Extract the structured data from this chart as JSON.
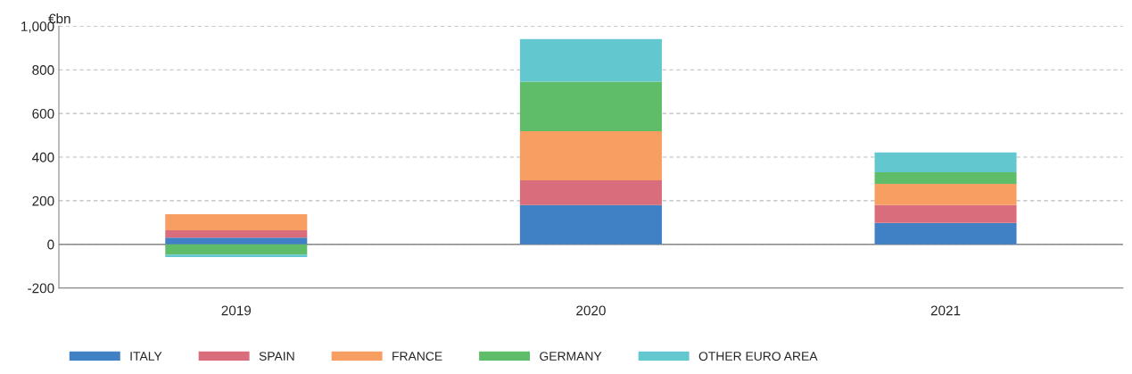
{
  "chart_data": {
    "type": "bar",
    "stacked": true,
    "ylabel": "€bn",
    "categories": [
      "2019",
      "2020",
      "2021"
    ],
    "series": [
      {
        "name": "ITALY",
        "color": "#4080c4",
        "values": [
          31,
          180,
          98
        ]
      },
      {
        "name": "SPAIN",
        "color": "#d96d7b",
        "values": [
          33,
          114,
          82
        ]
      },
      {
        "name": "FRANCE",
        "color": "#f79e62",
        "values": [
          74,
          225,
          97
        ]
      },
      {
        "name": "GERMANY",
        "color": "#5fbd6a",
        "values": [
          -47,
          227,
          53
        ]
      },
      {
        "name": "OTHER EURO AREA",
        "color": "#63c7cf",
        "values": [
          -11,
          195,
          91
        ]
      }
    ],
    "ylim": [
      -200,
      1000
    ],
    "yticks": [
      -200,
      0,
      200,
      400,
      600,
      800,
      {
        "value": 1000,
        "label": "1,000"
      }
    ],
    "grid": "y",
    "legend": "bottom left"
  }
}
